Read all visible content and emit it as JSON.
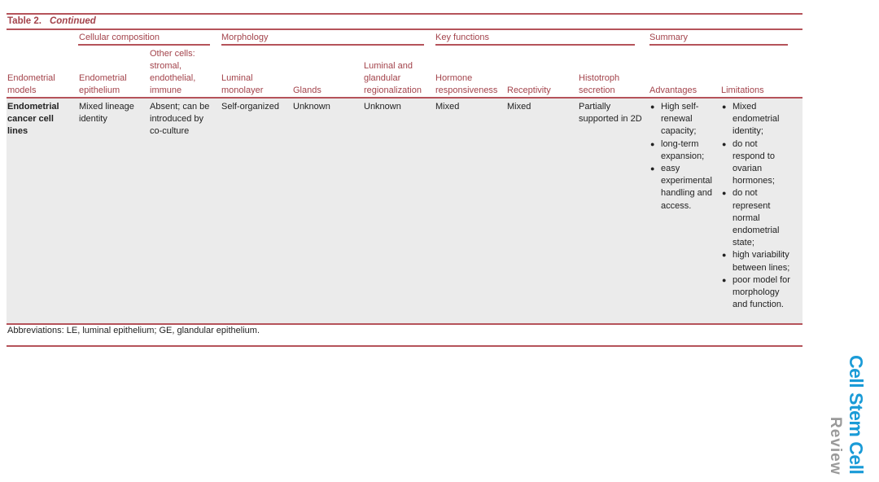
{
  "table": {
    "title": "Table 2.",
    "title_suffix": "Continued",
    "groups": [
      "Cellular composition",
      "Morphology",
      "Key functions",
      "Summary"
    ],
    "headers": [
      "Endometrial models",
      "Endometrial epithelium",
      "Other cells: stromal, endothelial, immune",
      "Luminal monolayer",
      "Glands",
      "Luminal and glandular regionalization",
      "Hormone responsiveness",
      "Receptivity",
      "Histotroph secretion",
      "Advantages",
      "Limitations"
    ],
    "row": {
      "model": "Endometrial cancer cell lines",
      "epithelium": "Mixed lineage identity",
      "other_cells": "Absent; can be introduced by co-culture",
      "luminal_monolayer": "Self-organized",
      "glands": "Unknown",
      "regionalization": "Unknown",
      "hormone": "Mixed",
      "receptivity": "Mixed",
      "histotroph": "Partially supported in 2D",
      "advantages": [
        "High self-renewal capacity;",
        "long-term expansion;",
        "easy experimental handling and access."
      ],
      "limitations": [
        "Mixed endometrial identity;",
        "do not respond to ovarian hormones;",
        "do not represent normal endometrial state;",
        "high variability between lines;",
        "poor model for morphology and function."
      ]
    },
    "footnote": "Abbreviations: LE, luminal epithelium; GE, glandular epithelium."
  },
  "journal": {
    "name": "Cell Stem Cell",
    "section": "Review",
    "color": "#1a9bd7"
  }
}
